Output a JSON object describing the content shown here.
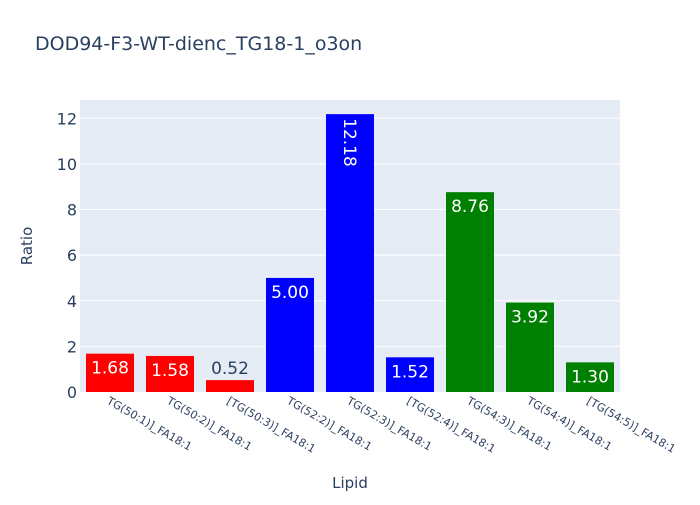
{
  "chart_data": {
    "type": "bar",
    "title": "DOD94-F3-WT-dienc_TG18-1_o3on",
    "xlabel": "Lipid",
    "ylabel": "Ratio",
    "ylim": [
      0,
      12.8
    ],
    "y_ticks": [
      0,
      2,
      4,
      6,
      8,
      10,
      12
    ],
    "grid": true,
    "categories": [
      "TG(50:1)]_FA18:1",
      "TG(50:2)]_FA18:1",
      "[TG(50:3)]_FA18:1",
      "TG(52:2)]_FA18:1",
      "TG(52:3)]_FA18:1",
      "[TG(52:4)]_FA18:1",
      "TG(54:3)]_FA18:1",
      "TG(54:4)]_FA18:1",
      "[TG(54:5)]_FA18:1"
    ],
    "values": [
      1.68,
      1.58,
      0.52,
      5.0,
      12.18,
      1.52,
      8.76,
      3.92,
      1.3
    ],
    "value_labels": [
      "1.68",
      "1.58",
      "0.52",
      "5.00",
      "12.18",
      "1.52",
      "8.76",
      "3.92",
      "1.30"
    ],
    "bar_colors": [
      "#ff0000",
      "#ff0000",
      "#ff0000",
      "#0000ff",
      "#0000ff",
      "#0000ff",
      "#008000",
      "#008000",
      "#008000"
    ]
  }
}
